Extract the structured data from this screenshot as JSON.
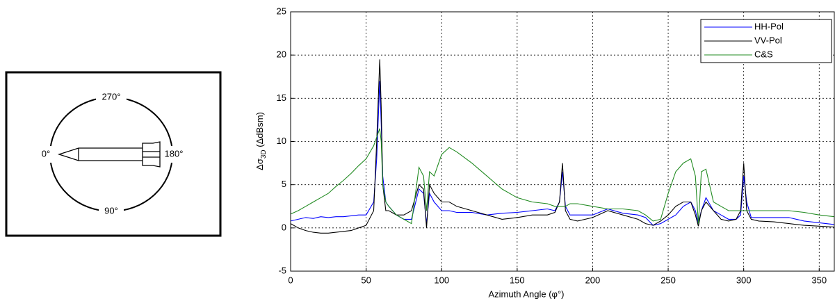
{
  "diagram": {
    "labels": [
      "270°",
      "0°",
      "180°",
      "90°"
    ]
  },
  "chart_data": {
    "type": "line",
    "x_label": "Azimuth Angle (φ°)",
    "y_label": {
      "main": "Δσ",
      "sub": "3D",
      "rest": " (ΔdBsm)"
    },
    "x": [
      0,
      5,
      10,
      15,
      20,
      25,
      30,
      35,
      40,
      45,
      50,
      55,
      57,
      59,
      60,
      61,
      63,
      65,
      70,
      75,
      80,
      85,
      88,
      90,
      92,
      95,
      100,
      105,
      110,
      120,
      130,
      140,
      150,
      160,
      170,
      175,
      178,
      180,
      182,
      185,
      190,
      200,
      210,
      220,
      230,
      235,
      240,
      245,
      250,
      255,
      260,
      265,
      268,
      270,
      272,
      275,
      280,
      285,
      290,
      295,
      298,
      300,
      302,
      305,
      310,
      320,
      330,
      340,
      350,
      360
    ],
    "series": [
      {
        "name": "HH-Pol",
        "color": "#0000ff",
        "values": [
          0.8,
          1,
          1.2,
          1.1,
          1.3,
          1.2,
          1.3,
          1.3,
          1.4,
          1.5,
          1.5,
          3,
          8,
          17,
          12,
          6,
          3,
          2.5,
          1.5,
          1,
          1,
          4.5,
          4,
          0.5,
          4,
          3,
          2,
          2,
          1.8,
          1.8,
          1.5,
          1.7,
          1.8,
          2,
          2.2,
          2,
          3,
          6.5,
          2.5,
          1.5,
          1.5,
          1.5,
          2.2,
          1.7,
          1.5,
          1.2,
          0.3,
          0.5,
          1,
          1.5,
          2.5,
          3,
          2,
          0.5,
          2,
          3.5,
          2,
          1.5,
          1,
          1,
          1.5,
          6,
          3,
          1.2,
          1.2,
          1.2,
          1.2,
          0.8,
          0.6,
          0.4
        ]
      },
      {
        "name": "VV-Pol",
        "color": "#000000",
        "values": [
          0.5,
          0,
          -0.3,
          -0.5,
          -0.6,
          -0.6,
          -0.5,
          -0.4,
          -0.3,
          0,
          0.3,
          2,
          10,
          19.5,
          14,
          5,
          2,
          2,
          1.5,
          1.5,
          2,
          5,
          4.5,
          0,
          5,
          4,
          3,
          3,
          2.5,
          2,
          1.5,
          1,
          1.2,
          1.5,
          1.5,
          1.8,
          3,
          7.5,
          2,
          1,
          0.8,
          1.2,
          2,
          1.5,
          1,
          0.5,
          0.3,
          0.8,
          1.5,
          2.5,
          3,
          3,
          1.5,
          0.2,
          2,
          3,
          2,
          1,
          0.8,
          1,
          2,
          7.5,
          2,
          1,
          0.8,
          0.7,
          0.5,
          0.3,
          0.2,
          0.1
        ]
      },
      {
        "name": "C&S",
        "color": "#228b22",
        "values": [
          1.6,
          2,
          2.5,
          3,
          3.5,
          4,
          4.8,
          5.5,
          6.3,
          7.2,
          8,
          9.5,
          10.5,
          11.5,
          10,
          5,
          3,
          2.5,
          1.5,
          1,
          0.5,
          7,
          6,
          2,
          6.5,
          6,
          8.5,
          9.3,
          8.8,
          7.5,
          6,
          4.5,
          3.5,
          3,
          2.8,
          2.5,
          2.5,
          2.5,
          2.5,
          2.8,
          2.8,
          2.5,
          2.2,
          2.2,
          2,
          1.5,
          0.8,
          1,
          4,
          6.5,
          7.5,
          8,
          6,
          0.5,
          6.5,
          6.8,
          3,
          2.5,
          2,
          2,
          2,
          2,
          2,
          2,
          2,
          2,
          2,
          1.8,
          1.5,
          1.3
        ]
      }
    ],
    "xlim": [
      0,
      360
    ],
    "xticks": [
      0,
      50,
      100,
      150,
      200,
      250,
      300,
      350
    ],
    "ylim": [
      -5,
      25
    ],
    "yticks": [
      -5,
      0,
      5,
      10,
      15,
      20,
      25
    ],
    "grid": true,
    "legend": "upper right"
  }
}
